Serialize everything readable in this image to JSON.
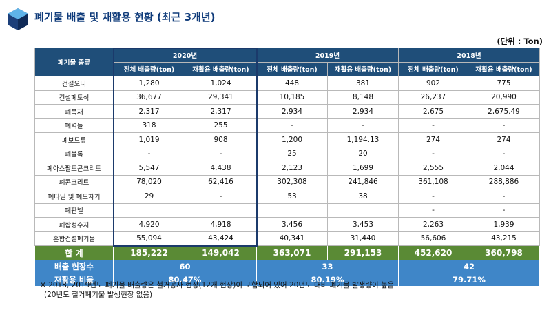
{
  "title": "폐기물 배출 및 재활용 현황 (최근 3개년)",
  "unit": "(단위 : Ton)",
  "header": {
    "category": "폐기물 종류",
    "years": [
      "2020년",
      "2019년",
      "2018년"
    ],
    "sub": [
      "전체 배출량(ton)",
      "재활용 배출량(ton)"
    ]
  },
  "rows": [
    {
      "name": "건설오니",
      "vals": [
        "1,280",
        "1,024",
        "448",
        "381",
        "902",
        "775"
      ]
    },
    {
      "name": "건설폐토석",
      "vals": [
        "36,677",
        "29,341",
        "10,185",
        "8,148",
        "26,237",
        "20,990"
      ]
    },
    {
      "name": "폐목재",
      "vals": [
        "2,317",
        "2,317",
        "2,934",
        "2,934",
        "2,675",
        "2,675.49"
      ]
    },
    {
      "name": "폐벽돌",
      "vals": [
        "318",
        "255",
        "-",
        "-",
        "-",
        "-"
      ]
    },
    {
      "name": "폐보드류",
      "vals": [
        "1,019",
        "908",
        "1,200",
        "1,194.13",
        "274",
        "274"
      ]
    },
    {
      "name": "폐블록",
      "vals": [
        "-",
        "-",
        "25",
        "20",
        "-",
        "-"
      ]
    },
    {
      "name": "폐아스팔트콘크리트",
      "vals": [
        "5,547",
        "4,438",
        "2,123",
        "1,699",
        "2,555",
        "2,044"
      ]
    },
    {
      "name": "폐콘크리트",
      "vals": [
        "78,020",
        "62,416",
        "302,308",
        "241,846",
        "361,108",
        "288,886"
      ]
    },
    {
      "name": "폐타일 및 폐도자기",
      "vals": [
        "29",
        "-",
        "53",
        "38",
        "-",
        "-"
      ]
    },
    {
      "name": "폐판넬",
      "vals": [
        "",
        "",
        "",
        "",
        "-",
        "-"
      ]
    },
    {
      "name": "폐합성수지",
      "vals": [
        "4,920",
        "4,918",
        "3,456",
        "3,453",
        "2,263",
        "1,939"
      ]
    },
    {
      "name": "혼합건설폐기물",
      "vals": [
        "55,094",
        "43,424",
        "40,341",
        "31,440",
        "56,606",
        "43,215"
      ]
    }
  ],
  "total": {
    "label": "합 계",
    "vals": [
      "185,222",
      "149,042",
      "363,071",
      "291,153",
      "452,620",
      "360,798"
    ]
  },
  "sites": {
    "label": "배출 현장수",
    "vals": [
      "60",
      "33",
      "42"
    ]
  },
  "ratio": {
    "label": "재활용 비율",
    "vals": [
      "80.47%",
      "80.19%",
      "79.71%"
    ]
  },
  "note": [
    "※ 2018, 2019년도 폐기물 배출량은 철거공사 현장(12개 현장)이 포함되어 있어 20년도 대비 폐기물 발생량이 높음",
    "(20년도 철거폐기물 발생현장 없음)"
  ],
  "colors": {
    "header": "#1f4e79",
    "total": "#5a8a35",
    "blue_rows": "#3f86c8",
    "title": "#0f3b7a"
  }
}
